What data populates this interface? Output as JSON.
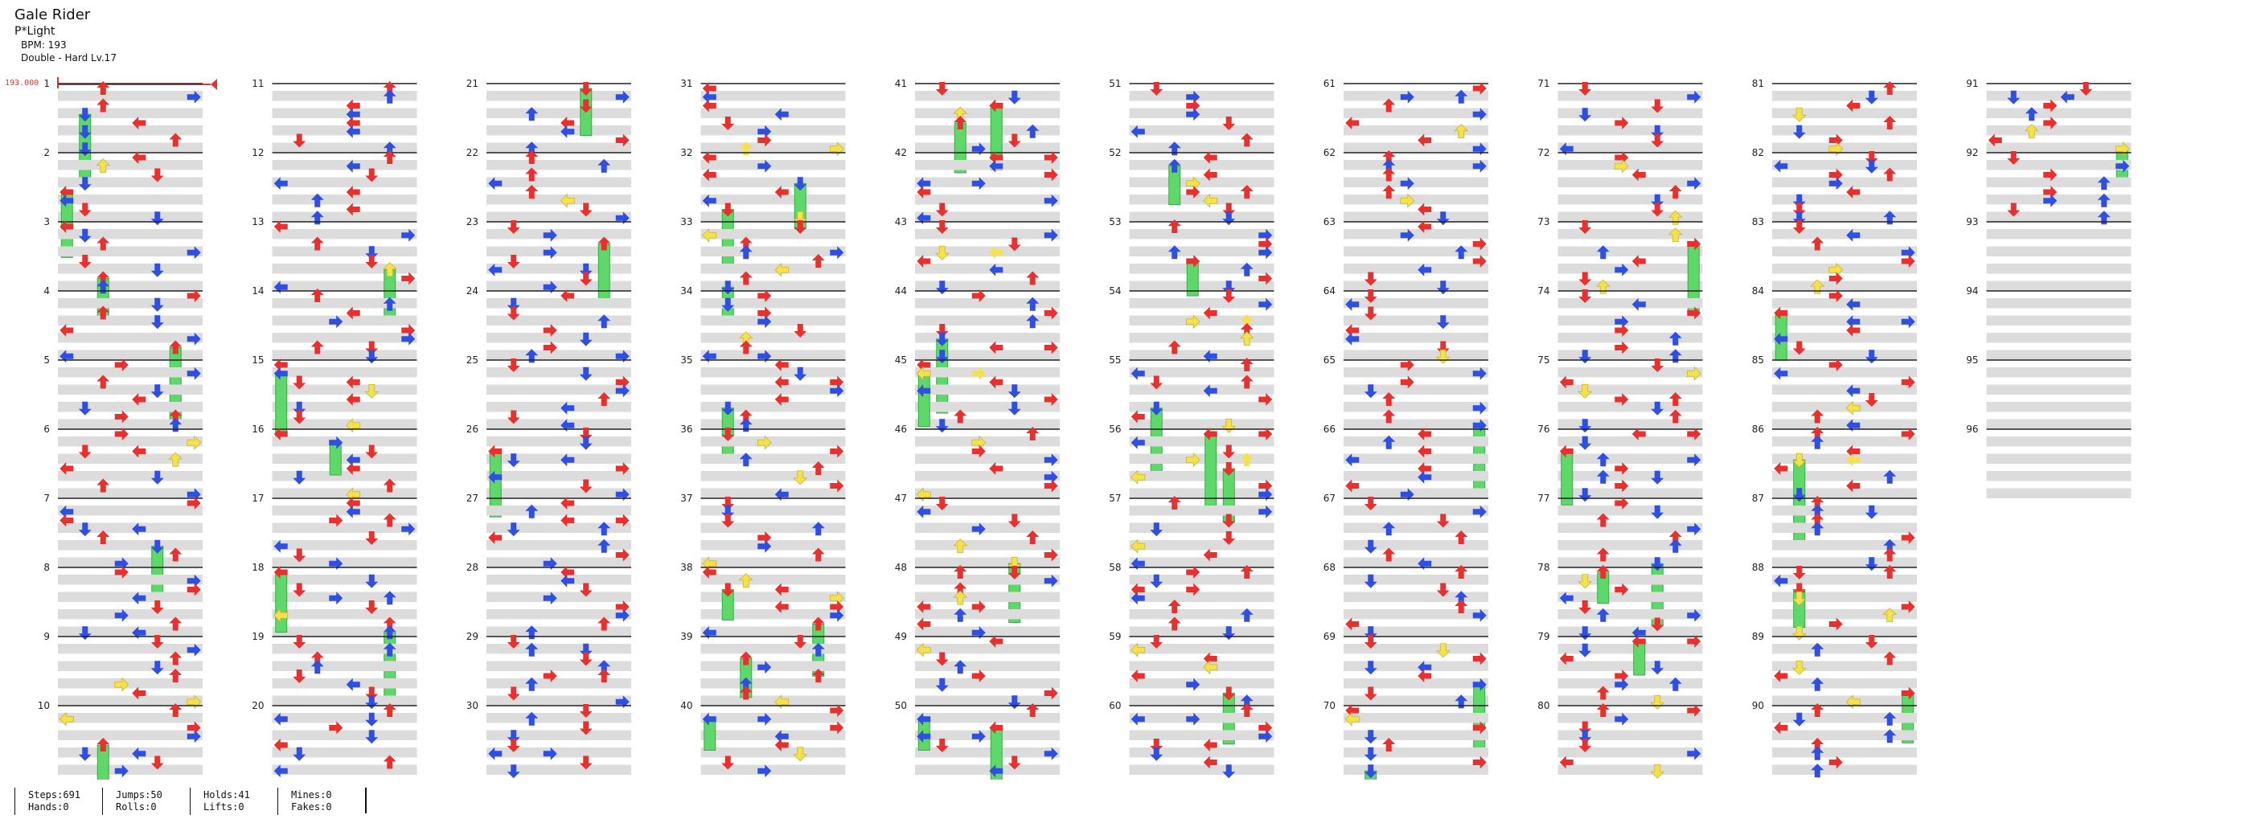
{
  "song": {
    "title": "Gale Rider",
    "artist": "P*Light",
    "bpm_text": "BPM: 193",
    "difficulty_text": "Double - Hard Lv.17"
  },
  "bpm_marker": {
    "label": "193.000",
    "color": "#e8312f"
  },
  "chart_data": {
    "type": "table",
    "measures_total": 96,
    "columns": [
      {
        "start": 1
      },
      {
        "start": 11
      },
      {
        "start": 21
      },
      {
        "start": 31
      },
      {
        "start": 41
      },
      {
        "start": 51
      },
      {
        "start": 61
      },
      {
        "start": 71
      },
      {
        "start": 81
      },
      {
        "start": 91
      }
    ],
    "last_measure_with_notes": 92,
    "panels": [
      "left",
      "down",
      "up",
      "right",
      "left",
      "down",
      "up",
      "right"
    ],
    "colors": {
      "red": "#e8312f",
      "blue": "#2f4fe0",
      "yellow": "#f5e14a",
      "hold": "#5fd86a",
      "lane": "#dcdcdc"
    }
  },
  "stats": {
    "steps": "Steps:691",
    "hands": "Hands:0",
    "jumps": "Jumps:50",
    "rolls": "Rolls:0",
    "holds": "Holds:41",
    "lifts": "Lifts:0",
    "mines": "Mines:0",
    "fakes": "Fakes:0"
  }
}
